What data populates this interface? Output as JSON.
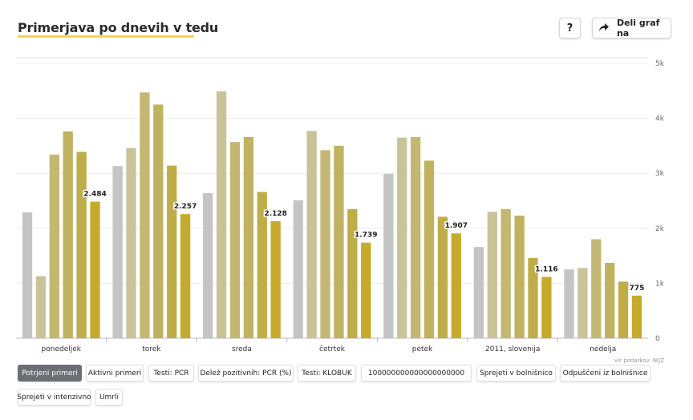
{
  "header": {
    "title": "Primerjava po dnevih v tedu",
    "help_label": "?",
    "share_label": "Deli graf na"
  },
  "source_label": "vir podatkov: NIJZ",
  "tabs": [
    {
      "label": "Potrjeni primeri",
      "active": true
    },
    {
      "label": "Aktivni primeri",
      "active": false
    },
    {
      "label": "Testi: PCR",
      "active": false
    },
    {
      "label": "Delež pozitivnih: PCR (%)",
      "active": false
    },
    {
      "label": "Testi: KLOBUK",
      "active": false
    },
    {
      "label": "100000000000000000000",
      "active": false
    },
    {
      "label": "Sprejeti v bolnišnico",
      "active": false
    },
    {
      "label": "Odpuščeni iz bolnišnice",
      "active": false
    },
    {
      "label": "Sprejeti v intenzivno",
      "active": false
    },
    {
      "label": "Umrli",
      "active": false
    }
  ],
  "chart_data": {
    "type": "bar",
    "categories": [
      "ponedeljek",
      "torek",
      "sreda",
      "četrtek",
      "petek",
      "2011, slovenija",
      "nedelja"
    ],
    "series_colors": [
      "#c4c4c4",
      "#c9c39a",
      "#c3b773",
      "#c0b260",
      "#bfad4a",
      "#c6aa2c"
    ],
    "series": [
      {
        "values": [
          2290,
          3130,
          2640,
          2510,
          2990,
          1660,
          1250
        ]
      },
      {
        "values": [
          1130,
          3460,
          4490,
          3770,
          3650,
          2300,
          1280
        ]
      },
      {
        "values": [
          3340,
          4470,
          3570,
          3420,
          3660,
          2350,
          1800
        ]
      },
      {
        "values": [
          3760,
          4250,
          3660,
          3500,
          3230,
          2230,
          1370
        ]
      },
      {
        "values": [
          3390,
          3140,
          2660,
          2350,
          2210,
          1460,
          1030
        ]
      },
      {
        "values": [
          2484,
          2257,
          2128,
          1739,
          1907,
          1116,
          775
        ]
      }
    ],
    "last_series_labels": [
      "2.484",
      "2.257",
      "2.128",
      "1.739",
      "1.907",
      "1.116",
      "775"
    ],
    "y_ticks": [
      0,
      1000,
      2000,
      3000,
      4000,
      5000
    ],
    "y_tick_labels": [
      "0",
      "1k",
      "2k",
      "3k",
      "4k",
      "5k"
    ],
    "ylim": [
      0,
      5000
    ],
    "grid": true,
    "y_axis_position": "right"
  }
}
